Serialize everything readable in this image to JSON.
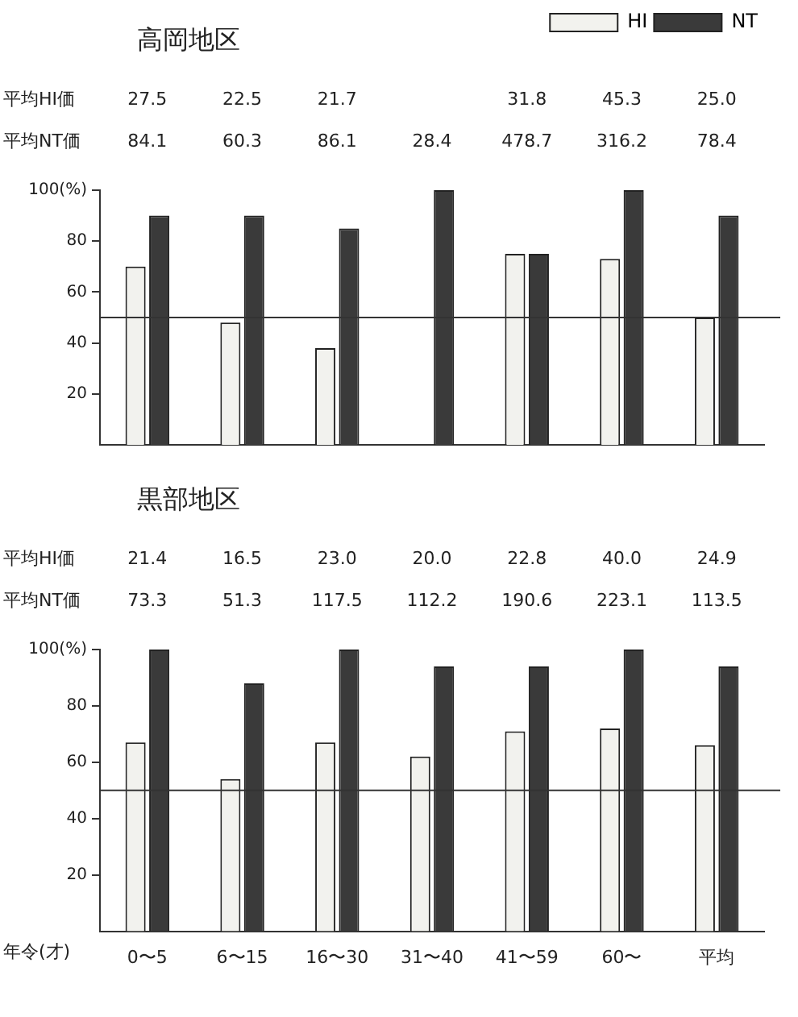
{
  "chart_data": [
    {
      "type": "bar",
      "title": "高岡地区",
      "categories": [
        null,
        null,
        null,
        null,
        null,
        null,
        null
      ],
      "series": [
        {
          "name": "HI",
          "color": "#f2f2ee",
          "values": [
            70,
            48,
            38,
            null,
            75,
            73,
            50
          ]
        },
        {
          "name": "NT",
          "color": "#3a3a3a",
          "values": [
            90,
            90,
            85,
            100,
            75,
            100,
            90
          ]
        }
      ],
      "ylim": [
        0,
        100
      ],
      "yticks": [
        20,
        40,
        60,
        80,
        {
          "value": 100,
          "label": "100(%)"
        }
      ],
      "grid": false,
      "legend": "top right",
      "tick_labels": "y",
      "ref_lines": [
        {
          "axis": "y",
          "value": 50
        }
      ],
      "annotations": [
        "平均HI価 27.5 22.5 21.7  31.8 45.3 25.0",
        "平均NT価 84.1 60.3 86.1 28.4 478.7 316.2 78.4"
      ]
    },
    {
      "type": "bar",
      "title": "黒部地区",
      "xlabel": "年令(才)",
      "categories": [
        "0〜5",
        "6〜15",
        "16〜30",
        "31〜40",
        "41〜59",
        "60〜",
        "平均"
      ],
      "series": [
        {
          "color": "#f2f2ee",
          "values": [
            67,
            54,
            67,
            62,
            71,
            72,
            66
          ]
        },
        {
          "color": "#3a3a3a",
          "values": [
            100,
            88,
            100,
            94,
            94,
            100,
            94
          ]
        }
      ],
      "ylim": [
        0,
        100
      ],
      "yticks": [
        20,
        40,
        60,
        80,
        {
          "value": 100,
          "label": "100(%)"
        }
      ],
      "grid": false,
      "ref_lines": [
        {
          "axis": "y",
          "value": 50
        }
      ],
      "annotations": [
        "平均HI価 21.4 16.5 23.0 20.0 22.8 40.0 24.9",
        "平均NT価 73.3 51.3 117.5 112.2 190.6 223.1 113.5"
      ]
    }
  ]
}
